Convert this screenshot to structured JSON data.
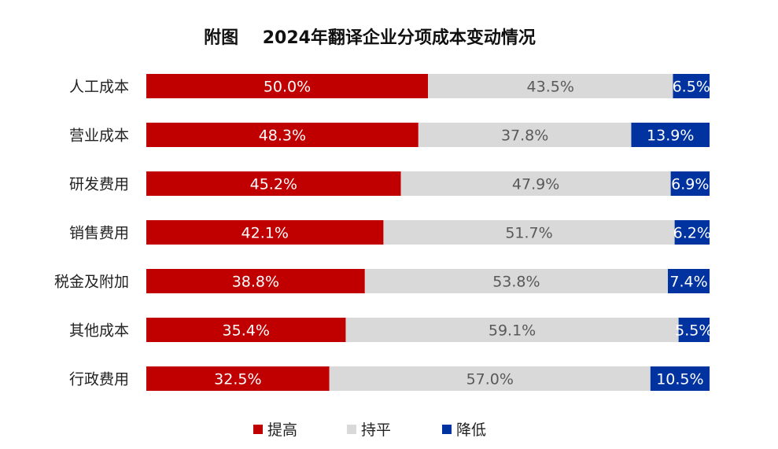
{
  "title": "附图    2024年翻译企业分项成本变动情况",
  "colors": {
    "up": "#c00000",
    "flat": "#d9d9d9",
    "down": "#0033a0"
  },
  "legend": [
    {
      "label": "提高",
      "color": "#c00000"
    },
    {
      "label": "持平",
      "color": "#d9d9d9"
    },
    {
      "label": "降低",
      "color": "#0033a0"
    }
  ],
  "chart_data": {
    "type": "bar",
    "orientation": "horizontal",
    "stacked": true,
    "percent": true,
    "title": "附图    2024年翻译企业分项成本变动情况",
    "categories": [
      "人工成本",
      "营业成本",
      "研发费用",
      "销售费用",
      "税金及附加",
      "其他成本",
      "行政费用"
    ],
    "series": [
      {
        "name": "提高",
        "values": [
          50.0,
          48.3,
          45.2,
          42.1,
          38.8,
          35.4,
          32.5
        ],
        "labels": [
          "50.0%",
          "48.3%",
          "45.2%",
          "42.1%",
          "38.8%",
          "35.4%",
          "32.5%"
        ]
      },
      {
        "name": "持平",
        "values": [
          43.5,
          37.8,
          47.9,
          51.7,
          53.8,
          59.1,
          57.0
        ],
        "labels": [
          "43.5%",
          "37.8%",
          "47.9%",
          "51.7%",
          "53.8%",
          "59.1%",
          "57.0%"
        ]
      },
      {
        "name": "降低",
        "values": [
          6.5,
          13.9,
          6.9,
          6.2,
          7.4,
          5.5,
          10.5
        ],
        "labels": [
          "6.5%",
          "13.9%",
          "6.9%",
          "6.2%",
          "7.4%",
          "5.5%",
          "10.5%"
        ]
      }
    ],
    "xlim": [
      0,
      100
    ],
    "grid": false,
    "legend_position": "bottom"
  }
}
